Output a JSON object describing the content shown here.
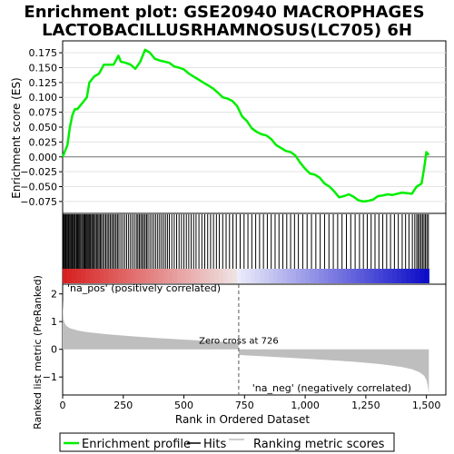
{
  "title_line1": "Enrichment plot: GSE20940 MACROPHAGES",
  "title_line2": "LACTOBACILLUSRHAMNOSUS(LC705) 6H",
  "colors": {
    "enrichment_line": "#00ee00",
    "hits": "#000000",
    "ranked_metric": "#bebebe",
    "pos_label": "#cc0000",
    "neg_label": "#0000cc"
  },
  "chart_data": [
    {
      "type": "line",
      "name": "enrichment-profile",
      "ylabel": "Enrichment score (ES)",
      "xlim": [
        0,
        1580
      ],
      "ylim": [
        -0.095,
        0.195
      ],
      "yticks": [
        -0.075,
        -0.05,
        -0.025,
        0.0,
        0.025,
        0.05,
        0.075,
        0.1,
        0.125,
        0.15,
        0.175
      ],
      "ytick_labels": [
        "−0.075",
        "−0.050",
        "−0.025",
        "0.000",
        "0.025",
        "0.050",
        "0.075",
        "0.100",
        "0.125",
        "0.150",
        "0.175"
      ],
      "grid": true,
      "x": [
        0,
        10,
        20,
        30,
        40,
        50,
        60,
        80,
        100,
        110,
        130,
        150,
        170,
        190,
        210,
        230,
        240,
        260,
        280,
        300,
        320,
        340,
        360,
        380,
        400,
        420,
        440,
        460,
        480,
        500,
        520,
        540,
        560,
        580,
        600,
        620,
        640,
        660,
        680,
        700,
        720,
        740,
        760,
        780,
        800,
        820,
        840,
        860,
        880,
        900,
        920,
        940,
        960,
        980,
        1000,
        1020,
        1040,
        1060,
        1080,
        1100,
        1120,
        1140,
        1160,
        1180,
        1200,
        1220,
        1240,
        1260,
        1280,
        1300,
        1320,
        1340,
        1360,
        1380,
        1400,
        1420,
        1440,
        1460,
        1480,
        1490,
        1500,
        1510
      ],
      "y": [
        0.0,
        0.01,
        0.02,
        0.05,
        0.07,
        0.08,
        0.08,
        0.09,
        0.1,
        0.125,
        0.135,
        0.14,
        0.155,
        0.155,
        0.155,
        0.17,
        0.16,
        0.158,
        0.155,
        0.148,
        0.16,
        0.18,
        0.175,
        0.165,
        0.162,
        0.16,
        0.158,
        0.152,
        0.15,
        0.147,
        0.14,
        0.135,
        0.13,
        0.125,
        0.12,
        0.115,
        0.108,
        0.1,
        0.098,
        0.094,
        0.085,
        0.068,
        0.06,
        0.048,
        0.042,
        0.038,
        0.036,
        0.03,
        0.02,
        0.015,
        0.01,
        0.008,
        0.002,
        -0.01,
        -0.02,
        -0.028,
        -0.03,
        -0.035,
        -0.045,
        -0.05,
        -0.058,
        -0.068,
        -0.066,
        -0.063,
        -0.067,
        -0.073,
        -0.075,
        -0.074,
        -0.072,
        -0.066,
        -0.065,
        -0.063,
        -0.064,
        -0.062,
        -0.06,
        -0.061,
        -0.062,
        -0.05,
        -0.045,
        -0.02,
        0.008,
        0.003
      ]
    },
    {
      "type": "scatter",
      "name": "hits",
      "xlim": [
        0,
        1580
      ],
      "hits_x": [
        2,
        6,
        9,
        13,
        16,
        20,
        24,
        27,
        31,
        35,
        39,
        42,
        46,
        50,
        53,
        58,
        62,
        66,
        70,
        74,
        79,
        83,
        88,
        92,
        96,
        100,
        104,
        108,
        112,
        116,
        121,
        126,
        130,
        135,
        140,
        145,
        150,
        155,
        160,
        166,
        172,
        178,
        184,
        190,
        196,
        202,
        208,
        214,
        220,
        226,
        232,
        240,
        248,
        256,
        264,
        272,
        280,
        288,
        296,
        304,
        310,
        316,
        322,
        328,
        334,
        340,
        346,
        352,
        360,
        368,
        376,
        384,
        392,
        400,
        408,
        416,
        424,
        432,
        440,
        450,
        460,
        470,
        480,
        490,
        500,
        510,
        520,
        530,
        540,
        550,
        562,
        574,
        586,
        598,
        610,
        622,
        634,
        646,
        660,
        674,
        688,
        702,
        716,
        732,
        748,
        764,
        780,
        796,
        812,
        828,
        844,
        860,
        876,
        892,
        908,
        924,
        940,
        956,
        972,
        990,
        1008,
        1026,
        1044,
        1062,
        1080,
        1098,
        1116,
        1134,
        1152,
        1170,
        1188,
        1206,
        1224,
        1240,
        1256,
        1272,
        1288,
        1304,
        1320,
        1336,
        1352,
        1368,
        1384,
        1400,
        1414,
        1428,
        1442,
        1452,
        1460,
        1466,
        1472,
        1478,
        1484,
        1490,
        1496,
        1502,
        1508
      ]
    },
    {
      "type": "area",
      "name": "ranked-list-metric",
      "ylabel": "Ranked list metric (PreRanked)",
      "xlabel": "Rank in Ordered Dataset",
      "xlim": [
        0,
        1580
      ],
      "ylim": [
        -1.65,
        2.35
      ],
      "yticks": [
        -1,
        0,
        1,
        2
      ],
      "ytick_labels": [
        "−1",
        "0",
        "1",
        "2"
      ],
      "xticks": [
        0,
        250,
        500,
        750,
        1000,
        1250,
        1500
      ],
      "xtick_labels": [
        "0",
        "250",
        "500",
        "750",
        "1,000",
        "1,250",
        "1,500"
      ],
      "x": [
        0,
        3,
        8,
        15,
        30,
        60,
        100,
        150,
        200,
        300,
        400,
        500,
        600,
        700,
        725,
        726,
        740,
        800,
        900,
        1000,
        1100,
        1200,
        1300,
        1350,
        1400,
        1440,
        1470,
        1490,
        1500,
        1505,
        1510
      ],
      "y": [
        1.8,
        1.1,
        0.95,
        0.85,
        0.76,
        0.68,
        0.62,
        0.57,
        0.53,
        0.46,
        0.4,
        0.35,
        0.3,
        0.25,
        0.23,
        -0.2,
        -0.21,
        -0.24,
        -0.29,
        -0.34,
        -0.39,
        -0.45,
        -0.53,
        -0.58,
        -0.64,
        -0.72,
        -0.82,
        -0.95,
        -1.1,
        -1.3,
        -1.6
      ],
      "zero_cross_rank": 726,
      "zero_cross_label": "Zero cross at 726",
      "pos_label": "'na_pos' (positively correlated)",
      "neg_label": "'na_neg' (negatively correlated)"
    }
  ],
  "legend": {
    "items": [
      "Enrichment profile",
      "Hits",
      "Ranking metric scores"
    ],
    "placement": "bottom"
  }
}
